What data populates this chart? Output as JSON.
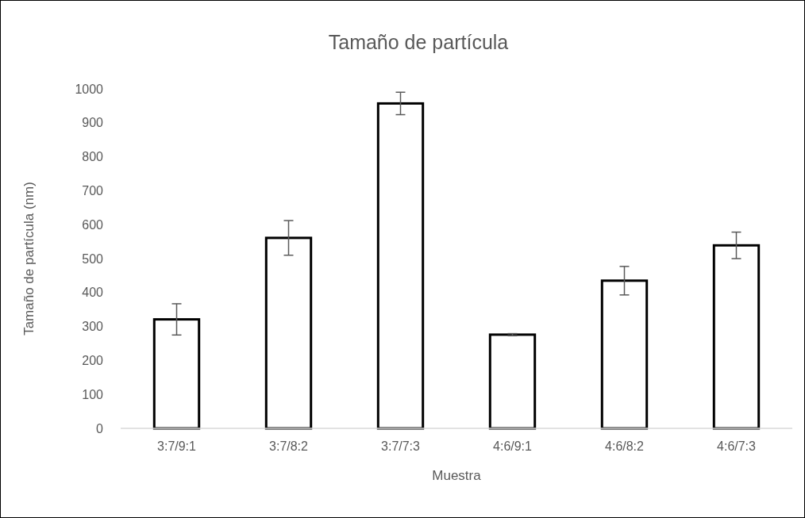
{
  "chart_data": {
    "type": "bar",
    "title": "Tamaño de partícula",
    "xlabel": "Muestra",
    "ylabel": "Tamaño de partícula (nm)",
    "categories": [
      "3:7/9:1",
      "3:7/8:2",
      "3:7/7:3",
      "4:6/9:1",
      "4:6/8:2",
      "4:6/7:3"
    ],
    "values": [
      321,
      561,
      957,
      276,
      435,
      539
    ],
    "errors": [
      46,
      51,
      33,
      3,
      42,
      39
    ],
    "color": "#000000",
    "ylim": [
      0,
      1000
    ],
    "yticks": [
      0,
      100,
      200,
      300,
      400,
      500,
      600,
      700,
      800,
      900,
      1000
    ],
    "grid": false
  }
}
